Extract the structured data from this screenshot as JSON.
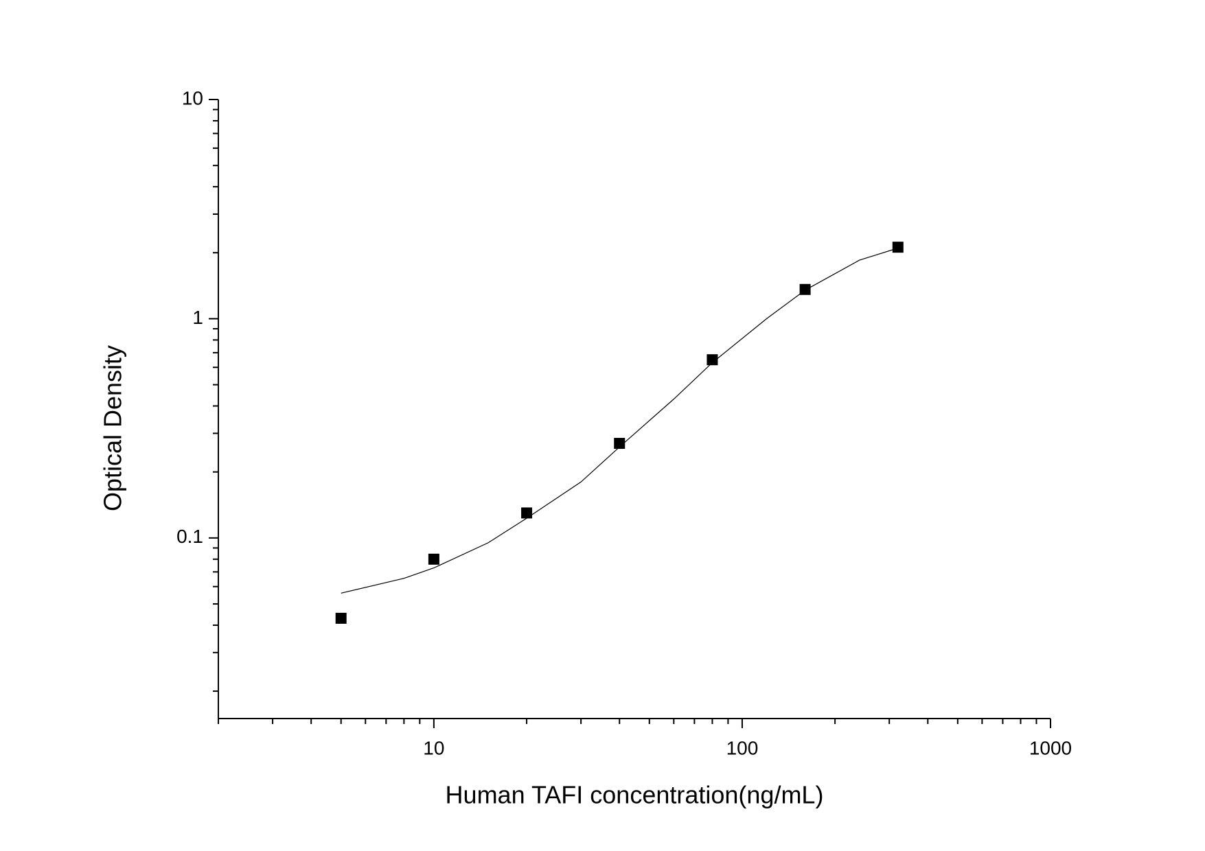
{
  "chart_data": {
    "type": "scatter",
    "x_label": "Human TAFI concentration(ng/mL)",
    "y_label": "Optical Density",
    "xlog": true,
    "ylog": true,
    "xlim": [
      2,
      1000
    ],
    "ylim": [
      0.015,
      10
    ],
    "xticks": [
      10,
      100,
      1000
    ],
    "yticks": [
      0.1,
      1,
      10
    ],
    "xminorticks": [
      2,
      3,
      4,
      5,
      6,
      7,
      8,
      9,
      20,
      30,
      40,
      50,
      60,
      70,
      80,
      90,
      200,
      300,
      400,
      500,
      600,
      700,
      800,
      900
    ],
    "yminorticks": [
      0.02,
      0.03,
      0.04,
      0.05,
      0.06,
      0.07,
      0.08,
      0.09,
      0.2,
      0.3,
      0.4,
      0.5,
      0.6,
      0.7,
      0.8,
      0.9,
      2,
      3,
      4,
      5,
      6,
      7,
      8,
      9
    ],
    "points": {
      "color": "#000000",
      "x": [
        5,
        10,
        20,
        40,
        80,
        160,
        320
      ],
      "y": [
        0.043,
        0.08,
        0.13,
        0.27,
        0.65,
        1.36,
        2.12
      ]
    },
    "fit": {
      "color": "#000000",
      "x": [
        5,
        8,
        10,
        15,
        20,
        30,
        40,
        60,
        80,
        120,
        160,
        240,
        320
      ],
      "y": [
        0.056,
        0.0654,
        0.073,
        0.095,
        0.123,
        0.18,
        0.26,
        0.43,
        0.63,
        1.0,
        1.35,
        1.85,
        2.1
      ]
    }
  }
}
